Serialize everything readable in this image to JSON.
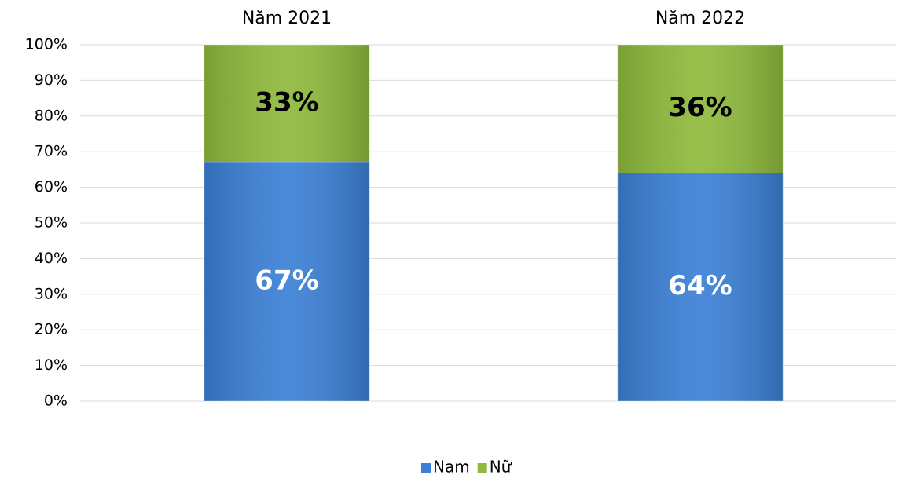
{
  "chart_data": {
    "type": "stacked_bar",
    "categories": [
      "Năm 2021",
      "Năm 2022"
    ],
    "series": [
      {
        "name": "Nam",
        "color": "#3b80d6",
        "values": [
          67,
          64
        ],
        "value_labels": [
          "67%",
          "64%"
        ]
      },
      {
        "name": "Nữ",
        "color": "#8fba3c",
        "values": [
          33,
          36
        ],
        "value_labels": [
          "33%",
          "36%"
        ]
      }
    ],
    "ylim": [
      0,
      100
    ],
    "yticks": [
      {
        "value": 0,
        "label": "0%"
      },
      {
        "value": 10,
        "label": "10%"
      },
      {
        "value": 20,
        "label": "20%"
      },
      {
        "value": 30,
        "label": "30%"
      },
      {
        "value": 40,
        "label": "40%"
      },
      {
        "value": 50,
        "label": "50%"
      },
      {
        "value": 60,
        "label": "60%"
      },
      {
        "value": 70,
        "label": "70%"
      },
      {
        "value": 80,
        "label": "80%"
      },
      {
        "value": 90,
        "label": "90%"
      },
      {
        "value": 100,
        "label": "100%"
      }
    ],
    "grid": true,
    "legend": "bottom"
  }
}
